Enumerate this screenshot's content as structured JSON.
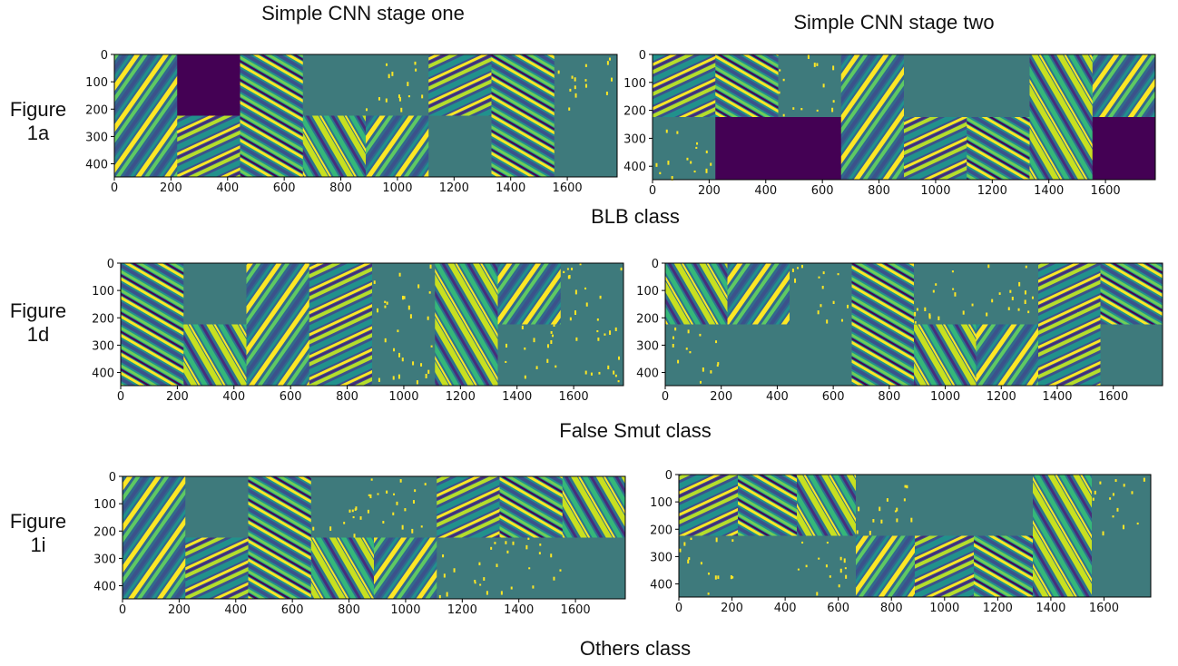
{
  "titles": [
    "Simple CNN stage one",
    "Simple CNN stage two"
  ],
  "rows": [
    {
      "label": [
        "Figure",
        "1a"
      ],
      "caption": "BLB class"
    },
    {
      "label": [
        "Figure",
        "1d"
      ],
      "caption": "False Smut class"
    },
    {
      "label": [
        "Figure",
        "1i"
      ],
      "caption": "Others class"
    }
  ],
  "panels": [
    {
      "xticks": [
        0,
        200,
        400,
        600,
        800,
        1000,
        1200,
        1400,
        1600
      ],
      "yticks": [
        0,
        100,
        200,
        300,
        400
      ]
    },
    {
      "xticks": [
        0,
        200,
        400,
        600,
        800,
        1000,
        1200,
        1400,
        1600
      ],
      "yticks": [
        0,
        100,
        200,
        300,
        400
      ]
    },
    {
      "xticks": [
        0,
        200,
        400,
        600,
        800,
        1000,
        1200,
        1400,
        1600
      ],
      "yticks": [
        0,
        100,
        200,
        300,
        400
      ]
    },
    {
      "xticks": [
        0,
        200,
        400,
        600,
        800,
        1000,
        1200,
        1400,
        1600
      ],
      "yticks": [
        0,
        100,
        200,
        300,
        400
      ]
    },
    {
      "xticks": [
        0,
        200,
        400,
        600,
        800,
        1000,
        1200,
        1400,
        1600
      ],
      "yticks": [
        0,
        100,
        200,
        300,
        400
      ]
    },
    {
      "xticks": [
        0,
        200,
        400,
        600,
        800,
        1000,
        1200,
        1400,
        1600
      ],
      "yticks": [
        0,
        100,
        200,
        300,
        400
      ]
    }
  ]
}
